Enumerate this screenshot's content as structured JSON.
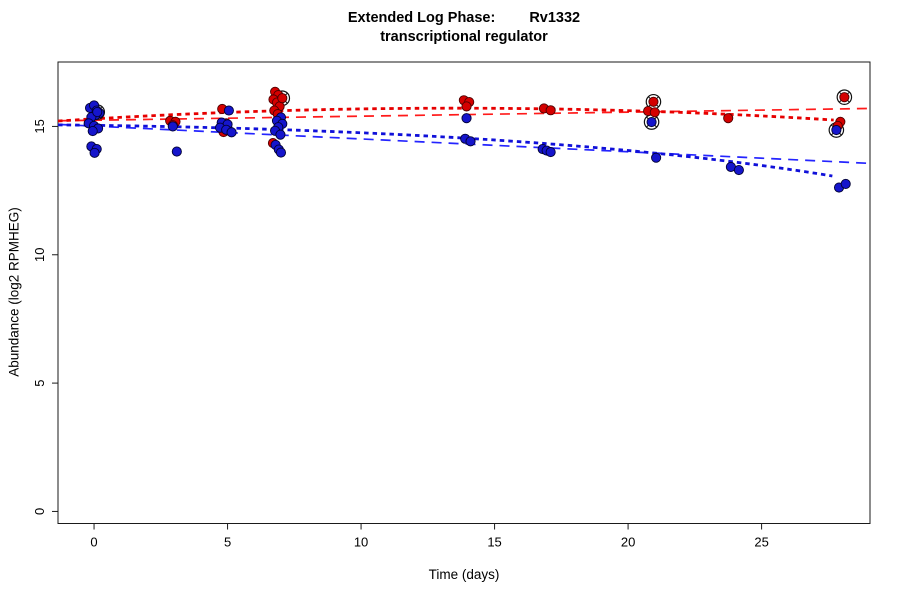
{
  "chart": {
    "title_left": "Extended Log Phase:",
    "title_gene": "Rv1332",
    "subtitle": "transcriptional regulator",
    "colors": {
      "red_point_fill": "#d40000",
      "red_point_edge": "#4d0000",
      "blue_point_fill": "#1515cc",
      "blue_point_edge": "#000033",
      "red_dashed_line": "#ff1a1a",
      "red_dotted_line": "#e60000",
      "blue_dashed_line": "#2424ff",
      "blue_dotted_line": "#1010d9",
      "circle_marker": "#111111",
      "axis": "#1a1a1a"
    },
    "chart_data": {
      "type": "scatter",
      "title": "Extended Log Phase: Rv1332 transcriptional regulator",
      "xlabel": "Time  (days)",
      "ylabel": "Abundance  (log2 RPMHEG)",
      "x_ticks": [
        0,
        5,
        10,
        15,
        20,
        25
      ],
      "y_ticks": [
        0,
        5,
        10,
        15
      ],
      "xlim": [
        -1.35,
        29.06
      ],
      "ylim": [
        -0.47,
        17.51
      ],
      "grid": false,
      "legend": "none",
      "series": [
        {
          "name": "red",
          "points": [
            [
              2.85,
              15.22
            ],
            [
              3.05,
              15.18
            ],
            [
              2.95,
              15.05
            ],
            [
              4.8,
              15.68
            ],
            [
              4.95,
              15.12
            ],
            [
              4.85,
              14.78
            ],
            [
              6.78,
              16.35
            ],
            [
              6.9,
              16.22
            ],
            [
              6.72,
              16.05
            ],
            [
              6.85,
              15.93
            ],
            [
              6.95,
              15.78
            ],
            [
              6.75,
              15.62
            ],
            [
              6.88,
              15.48
            ],
            [
              6.7,
              14.35
            ],
            [
              13.85,
              16.02
            ],
            [
              14.05,
              15.95
            ],
            [
              13.95,
              15.78
            ],
            [
              16.85,
              15.7
            ],
            [
              17.1,
              15.63
            ],
            [
              20.75,
              15.6
            ],
            [
              21.0,
              15.55
            ],
            [
              23.75,
              15.32
            ],
            [
              27.95,
              15.18
            ],
            [
              27.85,
              15.02
            ]
          ],
          "circled_points": [
            [
              7.05,
              16.1
            ],
            [
              20.95,
              15.96
            ],
            [
              28.1,
              16.14
            ]
          ]
        },
        {
          "name": "blue",
          "points": [
            [
              -0.15,
              15.72
            ],
            [
              0.0,
              15.82
            ],
            [
              0.1,
              15.62
            ],
            [
              0.2,
              15.52
            ],
            [
              0.05,
              15.44
            ],
            [
              -0.1,
              15.36
            ],
            [
              -0.2,
              15.12
            ],
            [
              0.0,
              15.02
            ],
            [
              0.15,
              14.92
            ],
            [
              -0.05,
              14.82
            ],
            [
              -0.1,
              14.22
            ],
            [
              0.1,
              14.12
            ],
            [
              0.02,
              13.97
            ],
            [
              2.95,
              15.0
            ],
            [
              3.1,
              14.02
            ],
            [
              5.05,
              15.62
            ],
            [
              4.78,
              15.15
            ],
            [
              5.0,
              15.08
            ],
            [
              4.72,
              14.95
            ],
            [
              4.95,
              14.87
            ],
            [
              5.15,
              14.77
            ],
            [
              7.0,
              15.35
            ],
            [
              6.85,
              15.22
            ],
            [
              7.05,
              15.1
            ],
            [
              6.9,
              14.97
            ],
            [
              6.78,
              14.83
            ],
            [
              6.98,
              14.68
            ],
            [
              6.8,
              14.28
            ],
            [
              6.92,
              14.1
            ],
            [
              7.0,
              13.98
            ],
            [
              13.95,
              15.32
            ],
            [
              13.9,
              14.52
            ],
            [
              14.1,
              14.42
            ],
            [
              16.8,
              14.12
            ],
            [
              16.95,
              14.06
            ],
            [
              17.1,
              14.0
            ],
            [
              21.05,
              13.78
            ],
            [
              23.85,
              13.42
            ],
            [
              24.15,
              13.3
            ],
            [
              27.9,
              12.62
            ],
            [
              28.15,
              12.76
            ]
          ],
          "circled_points": [
            [
              0.12,
              15.56
            ],
            [
              20.88,
              15.17
            ],
            [
              27.8,
              14.86
            ]
          ]
        }
      ],
      "trend_lines": [
        {
          "series": "red",
          "style": "dashed",
          "from": [
            -1.35,
            15.22
          ],
          "to": [
            29.06,
            15.7
          ]
        },
        {
          "series": "blue",
          "style": "dashed",
          "from": [
            -1.35,
            15.08
          ],
          "to": [
            29.06,
            13.56
          ]
        },
        {
          "series": "red",
          "style": "dotted",
          "from": [
            -1.35,
            15.21
          ],
          "ctrl": [
            13.3,
            16.19
          ],
          "to": [
            27.7,
            15.25
          ]
        },
        {
          "series": "blue",
          "style": "dotted",
          "from": [
            -1.35,
            15.06
          ],
          "ctrl": [
            17.1,
            14.86
          ],
          "to": [
            27.65,
            13.07
          ]
        }
      ]
    }
  }
}
